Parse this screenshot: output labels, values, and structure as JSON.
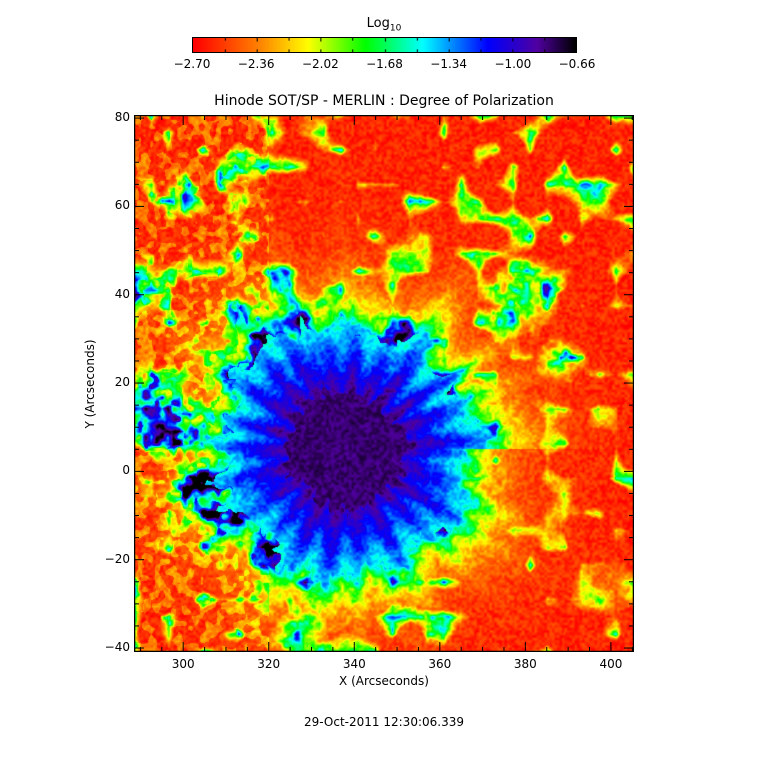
{
  "chart_data": {
    "type": "heatmap",
    "title": "Hinode SOT/SP - MERLIN : Degree of Polarization",
    "xlabel": "X (Arcseconds)",
    "ylabel": "Y (Arcseconds)",
    "xlim": [
      288.5,
      405.4
    ],
    "ylim": [
      -40.9,
      80.7
    ],
    "xticks": [
      300,
      320,
      340,
      360,
      380,
      400
    ],
    "yticks": [
      -40,
      -20,
      0,
      20,
      40,
      60,
      80
    ],
    "colorbar": {
      "label": "Log",
      "label_subscript": "10",
      "ticks": [
        "-2.70",
        "-2.36",
        "-2.02",
        "-1.68",
        "-1.34",
        "-1.00",
        "-0.66"
      ],
      "range": [
        -2.7,
        -0.66
      ],
      "colormap": [
        "#ff0000",
        "#ff8000",
        "#ffff00",
        "#00ff00",
        "#00ffff",
        "#0000ff",
        "#5000a0",
        "#000000"
      ],
      "placement": "top"
    },
    "features": {
      "sunspot_center": [
        338,
        5
      ],
      "umbra_value": -0.85,
      "quiet_sun_value": -2.6
    },
    "grid": false
  },
  "footer": {
    "date": "29-Oct-2011 12:30:06.339"
  }
}
